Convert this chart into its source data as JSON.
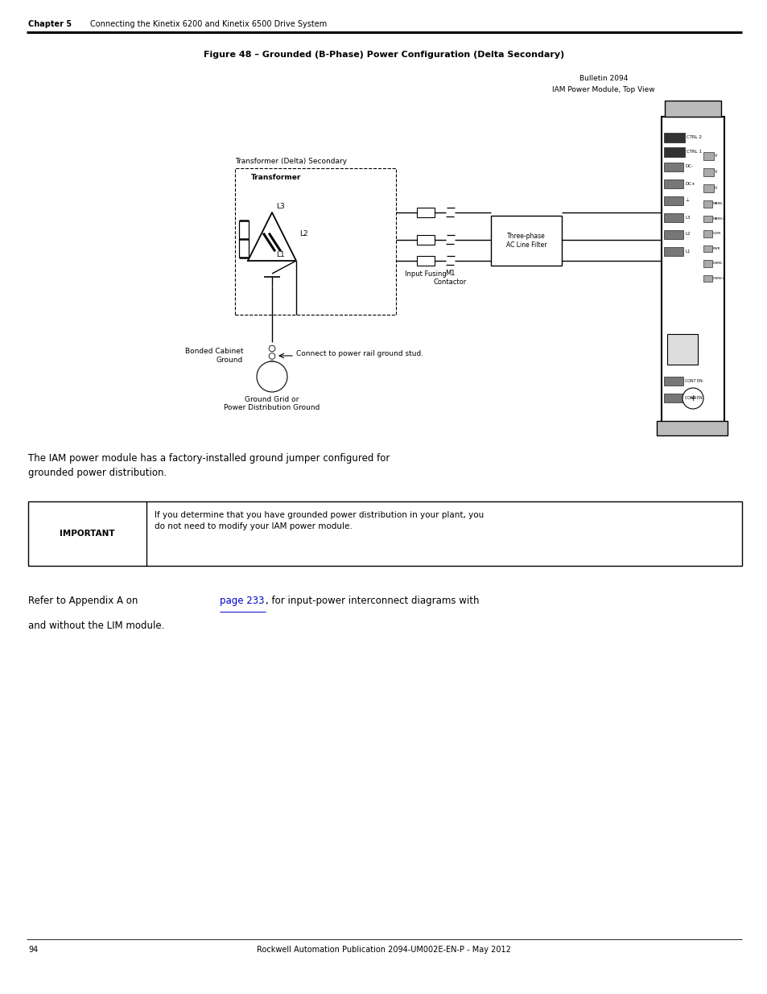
{
  "page_width": 9.54,
  "page_height": 12.35,
  "bg_color": "#ffffff",
  "header_chapter": "Chapter 5",
  "header_text": "Connecting the Kinetix 6200 and Kinetix 6500 Drive System",
  "footer_page": "94",
  "footer_center": "Rockwell Automation Publication 2094-UM002E-EN-P - May 2012",
  "figure_title": "Figure 48 – Grounded (B-Phase) Power Configuration (Delta Secondary)",
  "bulletin_label1": "Bulletin 2094",
  "bulletin_label2": "IAM Power Module, Top View",
  "transformer_delta_label": "Transformer (Delta) Secondary",
  "transformer_label": "Transformer",
  "l3_label": "L3",
  "l2_label": "L2",
  "l1_label": "L1",
  "input_fusing_label": "Input Fusing",
  "m1_label": "M1",
  "contactor_label": "Contactor",
  "three_phase_label": "Three-phase\nAC Line Filter",
  "bonded_cabinet_label": "Bonded Cabinet\nGround",
  "ground_grid_label": "Ground Grid or\nPower Distribution Ground",
  "connect_label": "Connect to power rail ground stud.",
  "important_label": "IMPORTANT",
  "important_text": "If you determine that you have grounded power distribution in your plant, you\ndo not need to modify your IAM power module.",
  "body_text1": "The IAM power module has a factory-installed ground jumper configured for\ngrounded power distribution.",
  "body_text2_pre": "Refer to Appendix A on ",
  "body_text2_link": "page 233",
  "body_text2_post": ", for input-power interconnect diagrams with",
  "body_text2_line2": "and without the LIM module."
}
